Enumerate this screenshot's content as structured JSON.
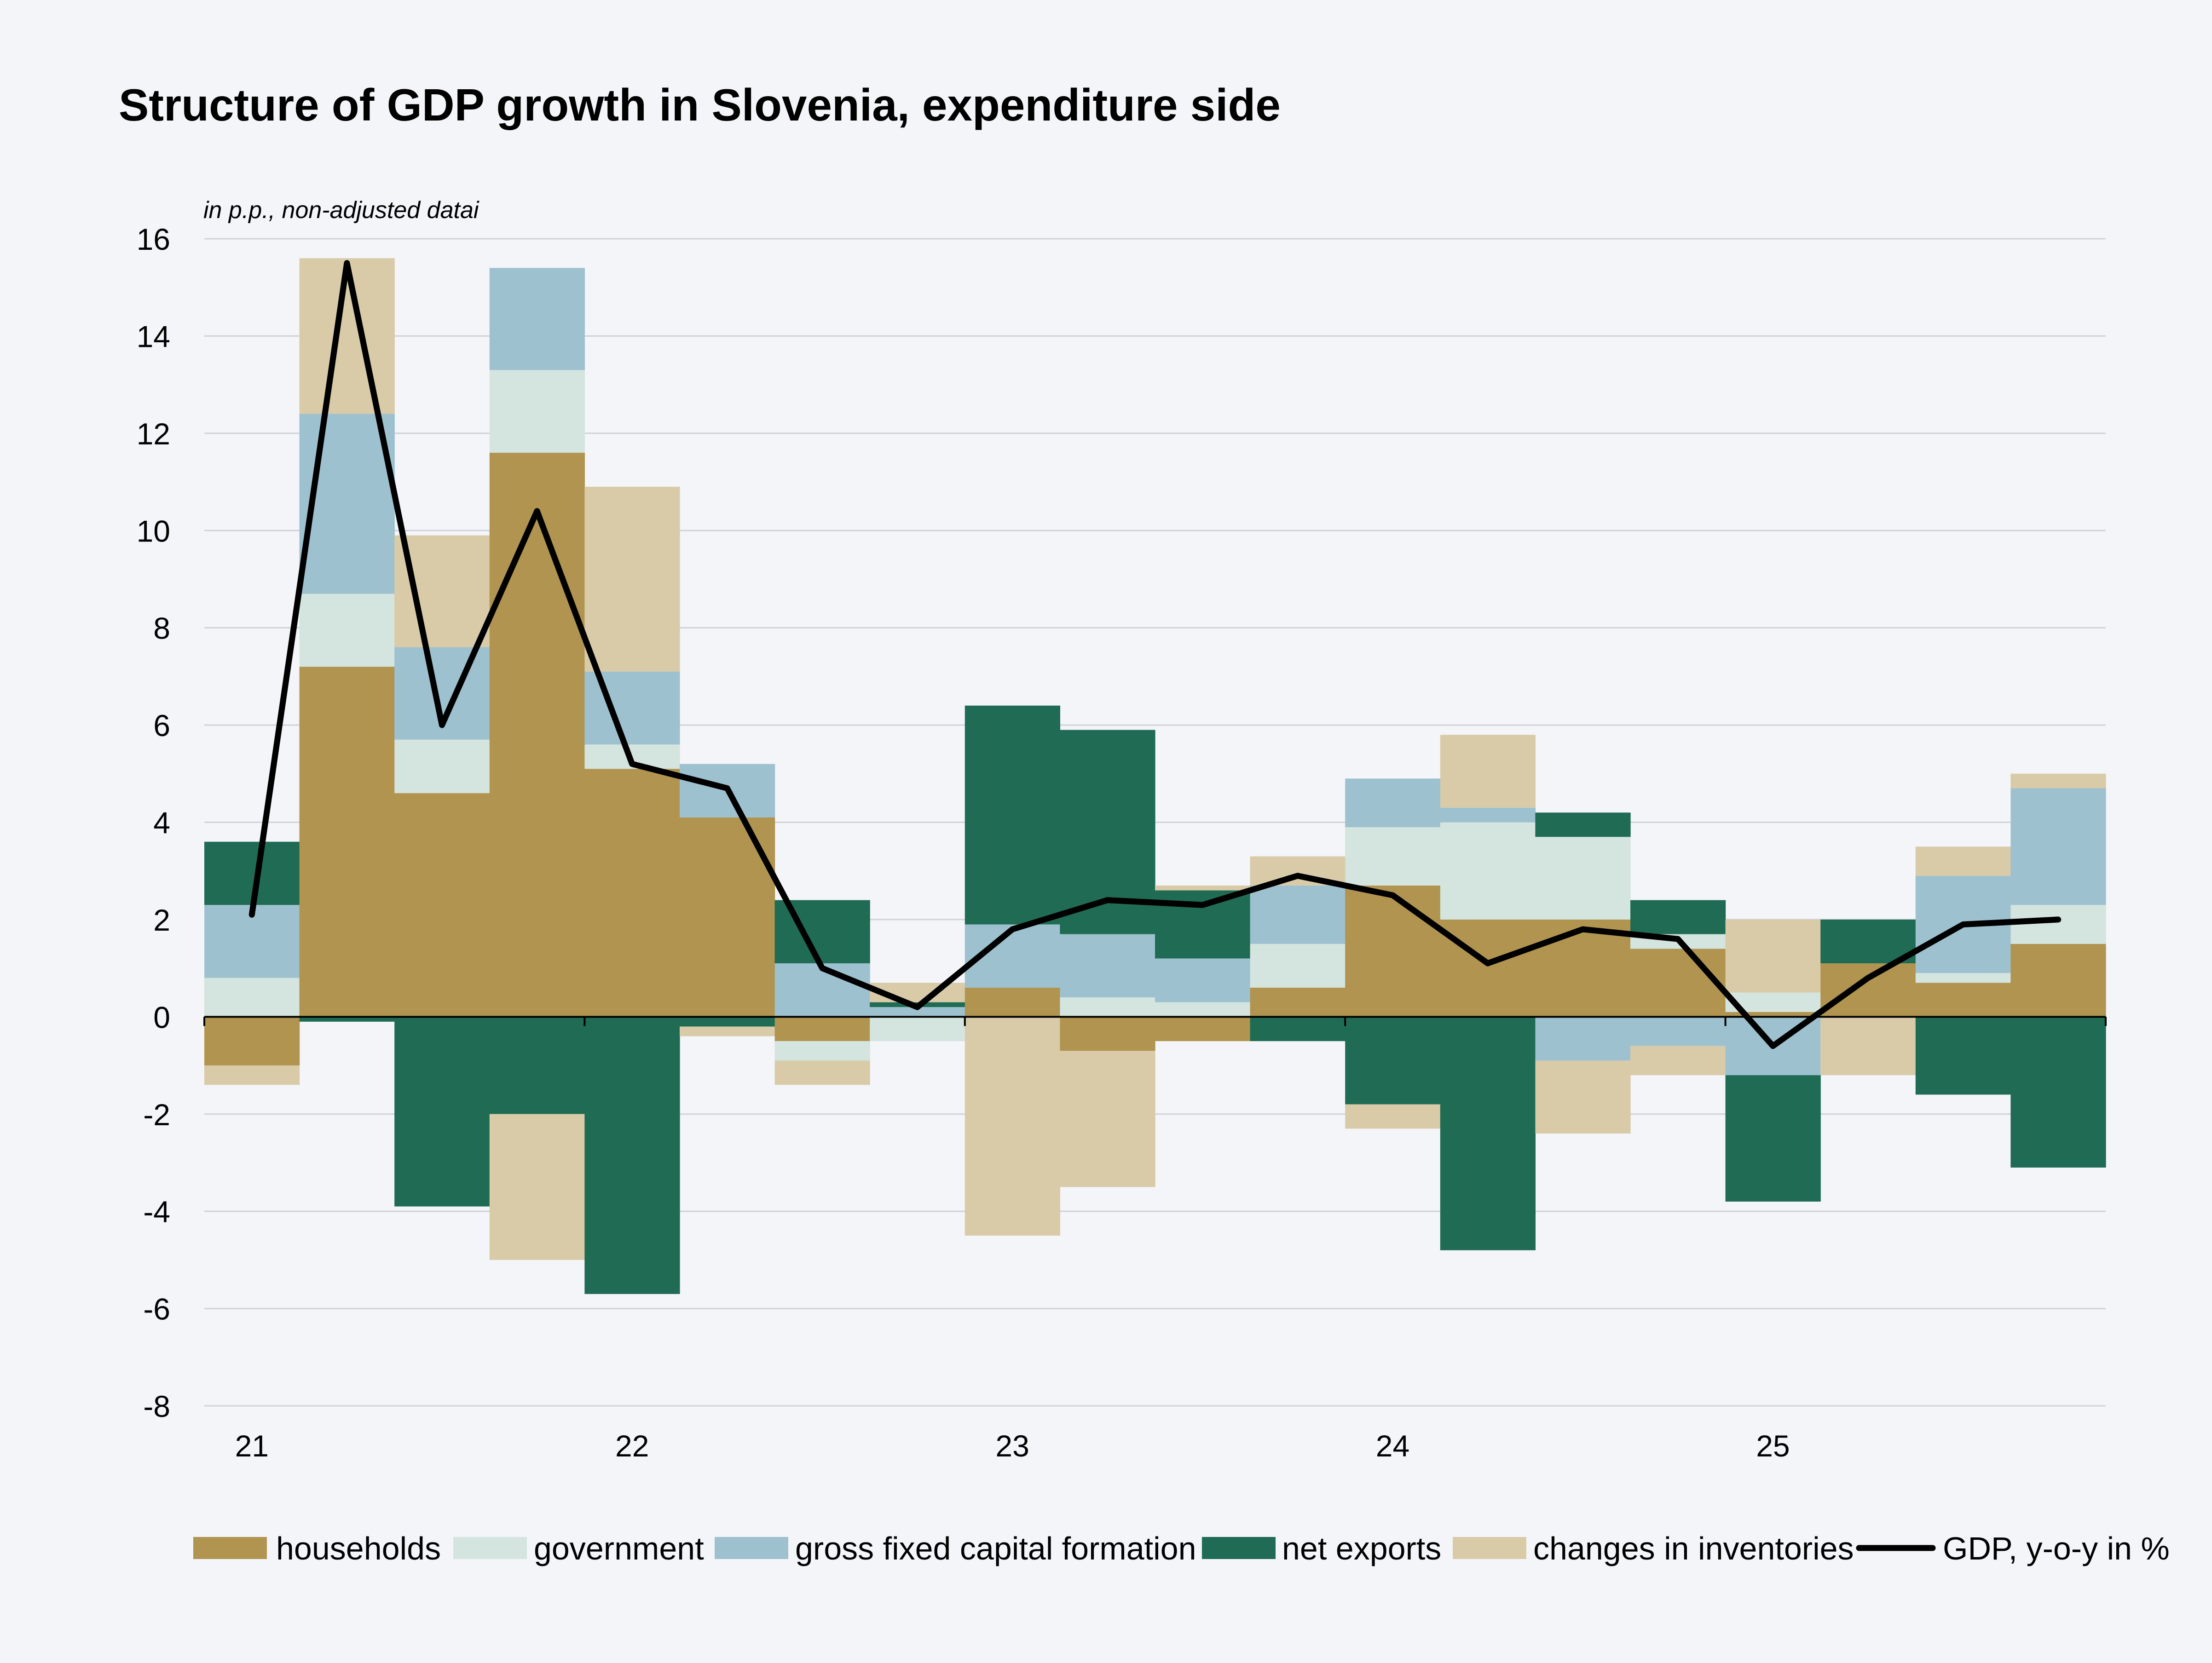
{
  "chart_data": {
    "type": "bar",
    "stacked": true,
    "title": "Structure of GDP growth in Slovenia, expenditure side",
    "subtitle": "in p.p., non-adjusted datai",
    "xlabel": "",
    "ylabel": "",
    "ylim": [
      -8,
      16
    ],
    "yticks": [
      16,
      14,
      12,
      10,
      8,
      6,
      4,
      2,
      0,
      -2,
      -4,
      -6,
      -8
    ],
    "ytick_labels": [
      "16",
      "14",
      "12",
      "10",
      "8",
      "6",
      "4",
      "2",
      "0",
      "-2",
      "-4",
      "-6",
      "-8"
    ],
    "year_labels": [
      "21",
      "22",
      "23",
      "24",
      "25"
    ],
    "year_start_index": [
      0,
      4,
      8,
      12,
      16
    ],
    "categories": [
      "21Q1",
      "21Q2",
      "21Q3",
      "21Q4",
      "22Q1",
      "22Q2",
      "22Q3",
      "22Q4",
      "23Q1",
      "23Q2",
      "23Q3",
      "23Q4",
      "24Q1",
      "24Q2",
      "24Q3",
      "24Q4",
      "25Q1",
      "25Q2",
      "25Q3",
      "25Q4"
    ],
    "grid": true,
    "legend_position": "bottom",
    "series": [
      {
        "name": "households",
        "color": "#b0944f",
        "values": [
          -1.0,
          7.2,
          4.6,
          11.6,
          5.1,
          4.1,
          -0.5,
          0.0,
          0.6,
          -0.7,
          -0.5,
          0.6,
          2.7,
          2.0,
          2.0,
          1.4,
          0.1,
          1.1,
          0.7,
          1.5
        ]
      },
      {
        "name": "government",
        "color": "#d4e4df",
        "values": [
          0.8,
          1.5,
          1.1,
          1.7,
          0.5,
          0.0,
          -0.4,
          -0.5,
          0.0,
          0.4,
          0.3,
          0.9,
          1.2,
          2.0,
          1.7,
          0.3,
          0.4,
          0.0,
          0.2,
          0.8
        ]
      },
      {
        "name": "gross fixed capital formation",
        "color": "#9dc1cf",
        "values": [
          1.5,
          3.7,
          1.9,
          2.1,
          1.5,
          1.1,
          1.1,
          0.2,
          1.3,
          1.3,
          0.9,
          1.2,
          1.0,
          0.3,
          -0.9,
          -0.6,
          -1.2,
          0.0,
          2.0,
          2.4
        ]
      },
      {
        "name": "net exports",
        "color": "#1f6b53",
        "values": [
          1.3,
          -0.1,
          -3.9,
          -2.0,
          -5.7,
          -0.2,
          1.3,
          0.1,
          4.5,
          4.2,
          1.4,
          -0.5,
          -1.8,
          -4.8,
          0.5,
          0.7,
          -2.6,
          0.9,
          -1.6,
          -3.1
        ]
      },
      {
        "name": "changes in inventories",
        "color": "#d9cba8",
        "values": [
          -0.4,
          3.2,
          2.3,
          -3.0,
          3.8,
          -0.2,
          -0.5,
          0.4,
          -4.5,
          -2.8,
          0.1,
          0.6,
          -0.5,
          1.5,
          -1.5,
          -0.6,
          1.5,
          -1.2,
          0.6,
          0.3
        ]
      }
    ],
    "line": {
      "name": "GDP, y-o-y in %",
      "color": "#000000",
      "values": [
        2.1,
        15.5,
        6.0,
        10.4,
        5.2,
        4.7,
        1.0,
        0.2,
        1.8,
        2.4,
        2.3,
        2.9,
        2.5,
        1.1,
        1.8,
        1.6,
        -0.6,
        0.8,
        1.9,
        2.0
      ]
    }
  }
}
